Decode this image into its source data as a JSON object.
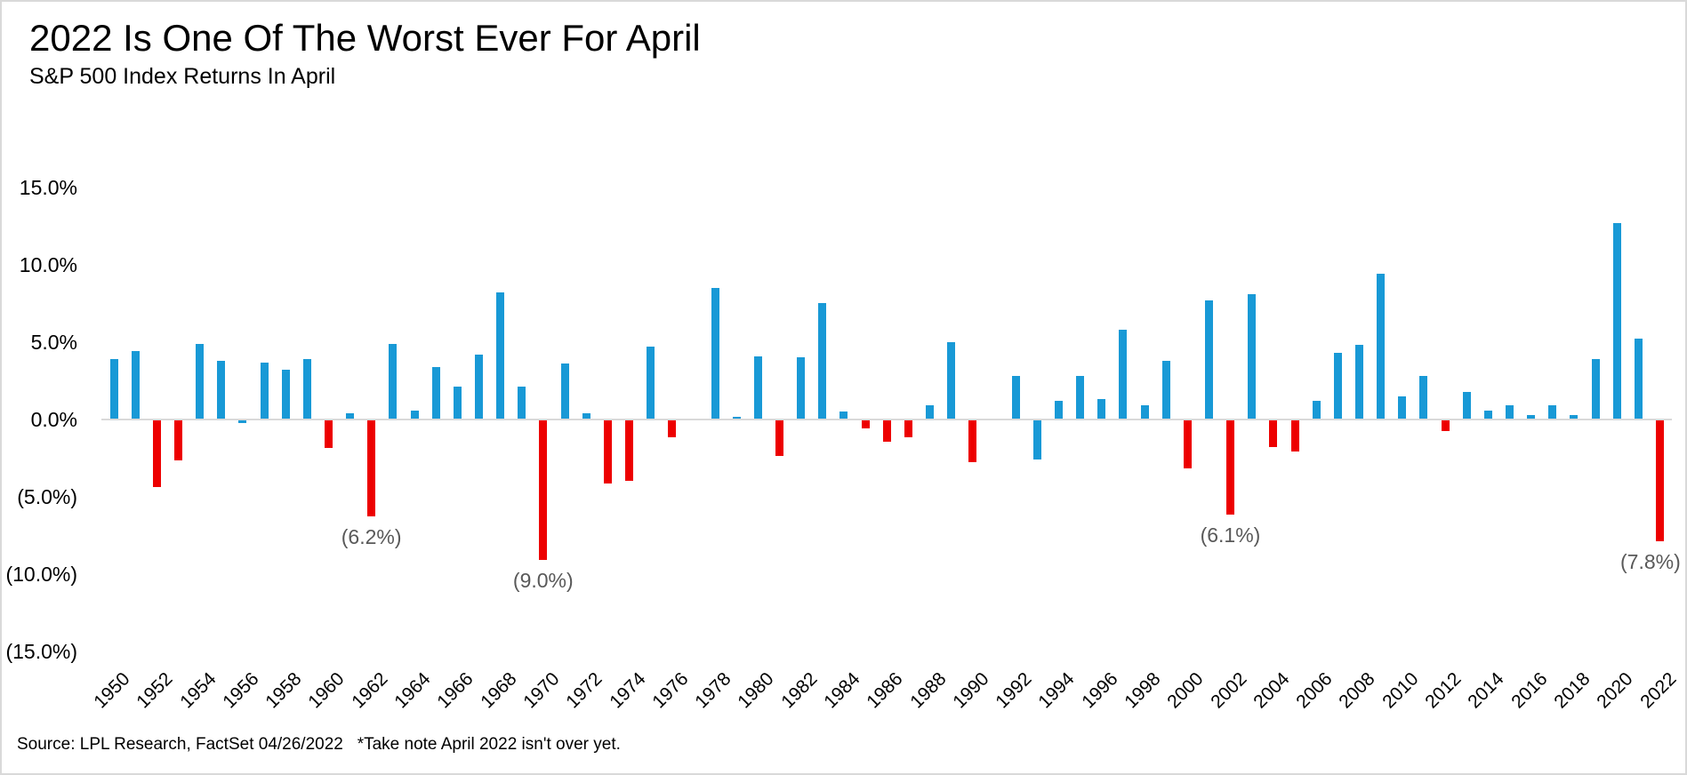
{
  "chart_data": {
    "type": "bar",
    "title": "2022 Is One Of The Worst Ever For April",
    "subtitle": "S&P 500 Index Returns In April",
    "source_note": "Source: LPL Research, FactSet 04/26/2022   *Take note April 2022 isn't over yet.",
    "ylabel": "",
    "xlabel": "",
    "grid": "off",
    "legend": "none",
    "categories": [
      1950,
      1951,
      1952,
      1953,
      1954,
      1955,
      1956,
      1957,
      1958,
      1959,
      1960,
      1961,
      1962,
      1963,
      1964,
      1965,
      1966,
      1967,
      1968,
      1969,
      1970,
      1971,
      1972,
      1973,
      1974,
      1975,
      1976,
      1977,
      1978,
      1979,
      1980,
      1981,
      1982,
      1983,
      1984,
      1985,
      1986,
      1987,
      1988,
      1989,
      1990,
      1991,
      1992,
      1993,
      1994,
      1995,
      1996,
      1997,
      1998,
      1999,
      2000,
      2001,
      2002,
      2003,
      2004,
      2005,
      2006,
      2007,
      2008,
      2009,
      2010,
      2011,
      2012,
      2013,
      2014,
      2015,
      2016,
      2017,
      2018,
      2019,
      2020,
      2021,
      2022
    ],
    "values": [
      3.9,
      4.4,
      -4.3,
      -2.6,
      4.9,
      3.8,
      -0.2,
      3.7,
      3.2,
      3.9,
      -1.8,
      0.4,
      -6.2,
      4.9,
      0.6,
      3.4,
      2.1,
      4.2,
      8.2,
      2.1,
      -9.0,
      3.6,
      0.4,
      -4.1,
      -3.9,
      4.7,
      -1.1,
      0.0,
      8.5,
      0.2,
      4.1,
      -2.3,
      4.0,
      7.5,
      0.5,
      -0.5,
      -1.4,
      -1.1,
      0.9,
      5.0,
      -2.7,
      0.0,
      2.8,
      -2.5,
      1.2,
      2.8,
      1.3,
      5.8,
      0.9,
      3.8,
      -3.1,
      7.7,
      -6.1,
      8.1,
      -1.7,
      -2.0,
      1.2,
      4.3,
      4.8,
      9.4,
      1.5,
      2.8,
      -0.7,
      1.8,
      0.6,
      0.9,
      0.3,
      0.9,
      0.3,
      3.9,
      12.7,
      5.2,
      -7.8
    ],
    "red_years": [
      1952,
      1953,
      1960,
      1962,
      1970,
      1973,
      1974,
      1976,
      1981,
      1985,
      1986,
      1987,
      1990,
      2000,
      2002,
      2004,
      2005,
      2012,
      2022
    ],
    "bar_colors": {
      "blue": "#1899d6",
      "red": "#ed0000"
    },
    "axis_line_color": "#d9d9d9",
    "annotation_color": "#595959",
    "y_axis": {
      "min": -15,
      "max": 15,
      "tick_step": 5,
      "tick_values": [
        15,
        10,
        5,
        0,
        -5,
        -10,
        -15
      ],
      "tick_labels": [
        "15.0%",
        "10.0%",
        "5.0%",
        "0.0%",
        "(5.0%)",
        "(10.0%)",
        "(15.0%)"
      ]
    },
    "x_tick_labels": [
      "1950",
      "1952",
      "1954",
      "1956",
      "1958",
      "1960",
      "1962",
      "1964",
      "1966",
      "1968",
      "1970",
      "1972",
      "1974",
      "1976",
      "1978",
      "1980",
      "1982",
      "1984",
      "1986",
      "1988",
      "1990",
      "1992",
      "1994",
      "1996",
      "1998",
      "2000",
      "2002",
      "2004",
      "2006",
      "2008",
      "2010",
      "2012",
      "2014",
      "2016",
      "2018",
      "2020",
      "2022"
    ],
    "annotations": [
      {
        "year": 1962,
        "label": "(6.2%)"
      },
      {
        "year": 1970,
        "label": "(9.0%)"
      },
      {
        "year": 2002,
        "label": "(6.1%)"
      },
      {
        "year": 2022,
        "label": "(7.8%)"
      }
    ]
  }
}
